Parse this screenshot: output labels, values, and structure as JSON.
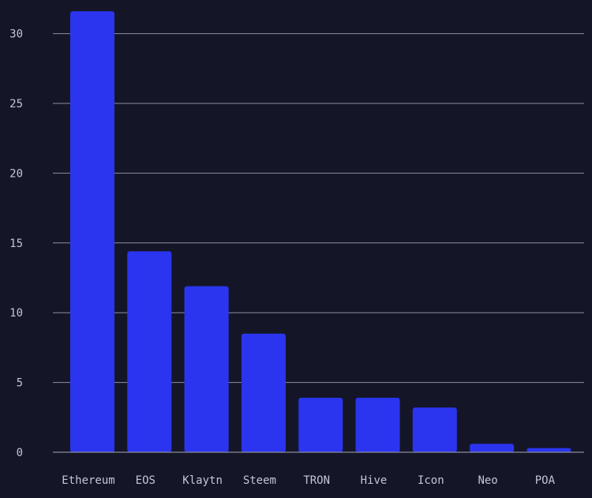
{
  "chart_data": {
    "type": "bar",
    "title": "",
    "xlabel": "",
    "ylabel": "",
    "categories": [
      "Ethereum",
      "EOS",
      "Klaytn",
      "Steem",
      "TRON",
      "Hive",
      "Icon",
      "Neo",
      "POA"
    ],
    "values": [
      31.6,
      14.4,
      11.9,
      8.5,
      3.9,
      3.9,
      3.2,
      0.6,
      0.3
    ],
    "ylim": [
      0,
      31.6
    ],
    "yticks": [
      0,
      5,
      10,
      15,
      20,
      25,
      30
    ],
    "grid": true,
    "bar_color": "#2b35ef",
    "background_color": "#141628"
  }
}
